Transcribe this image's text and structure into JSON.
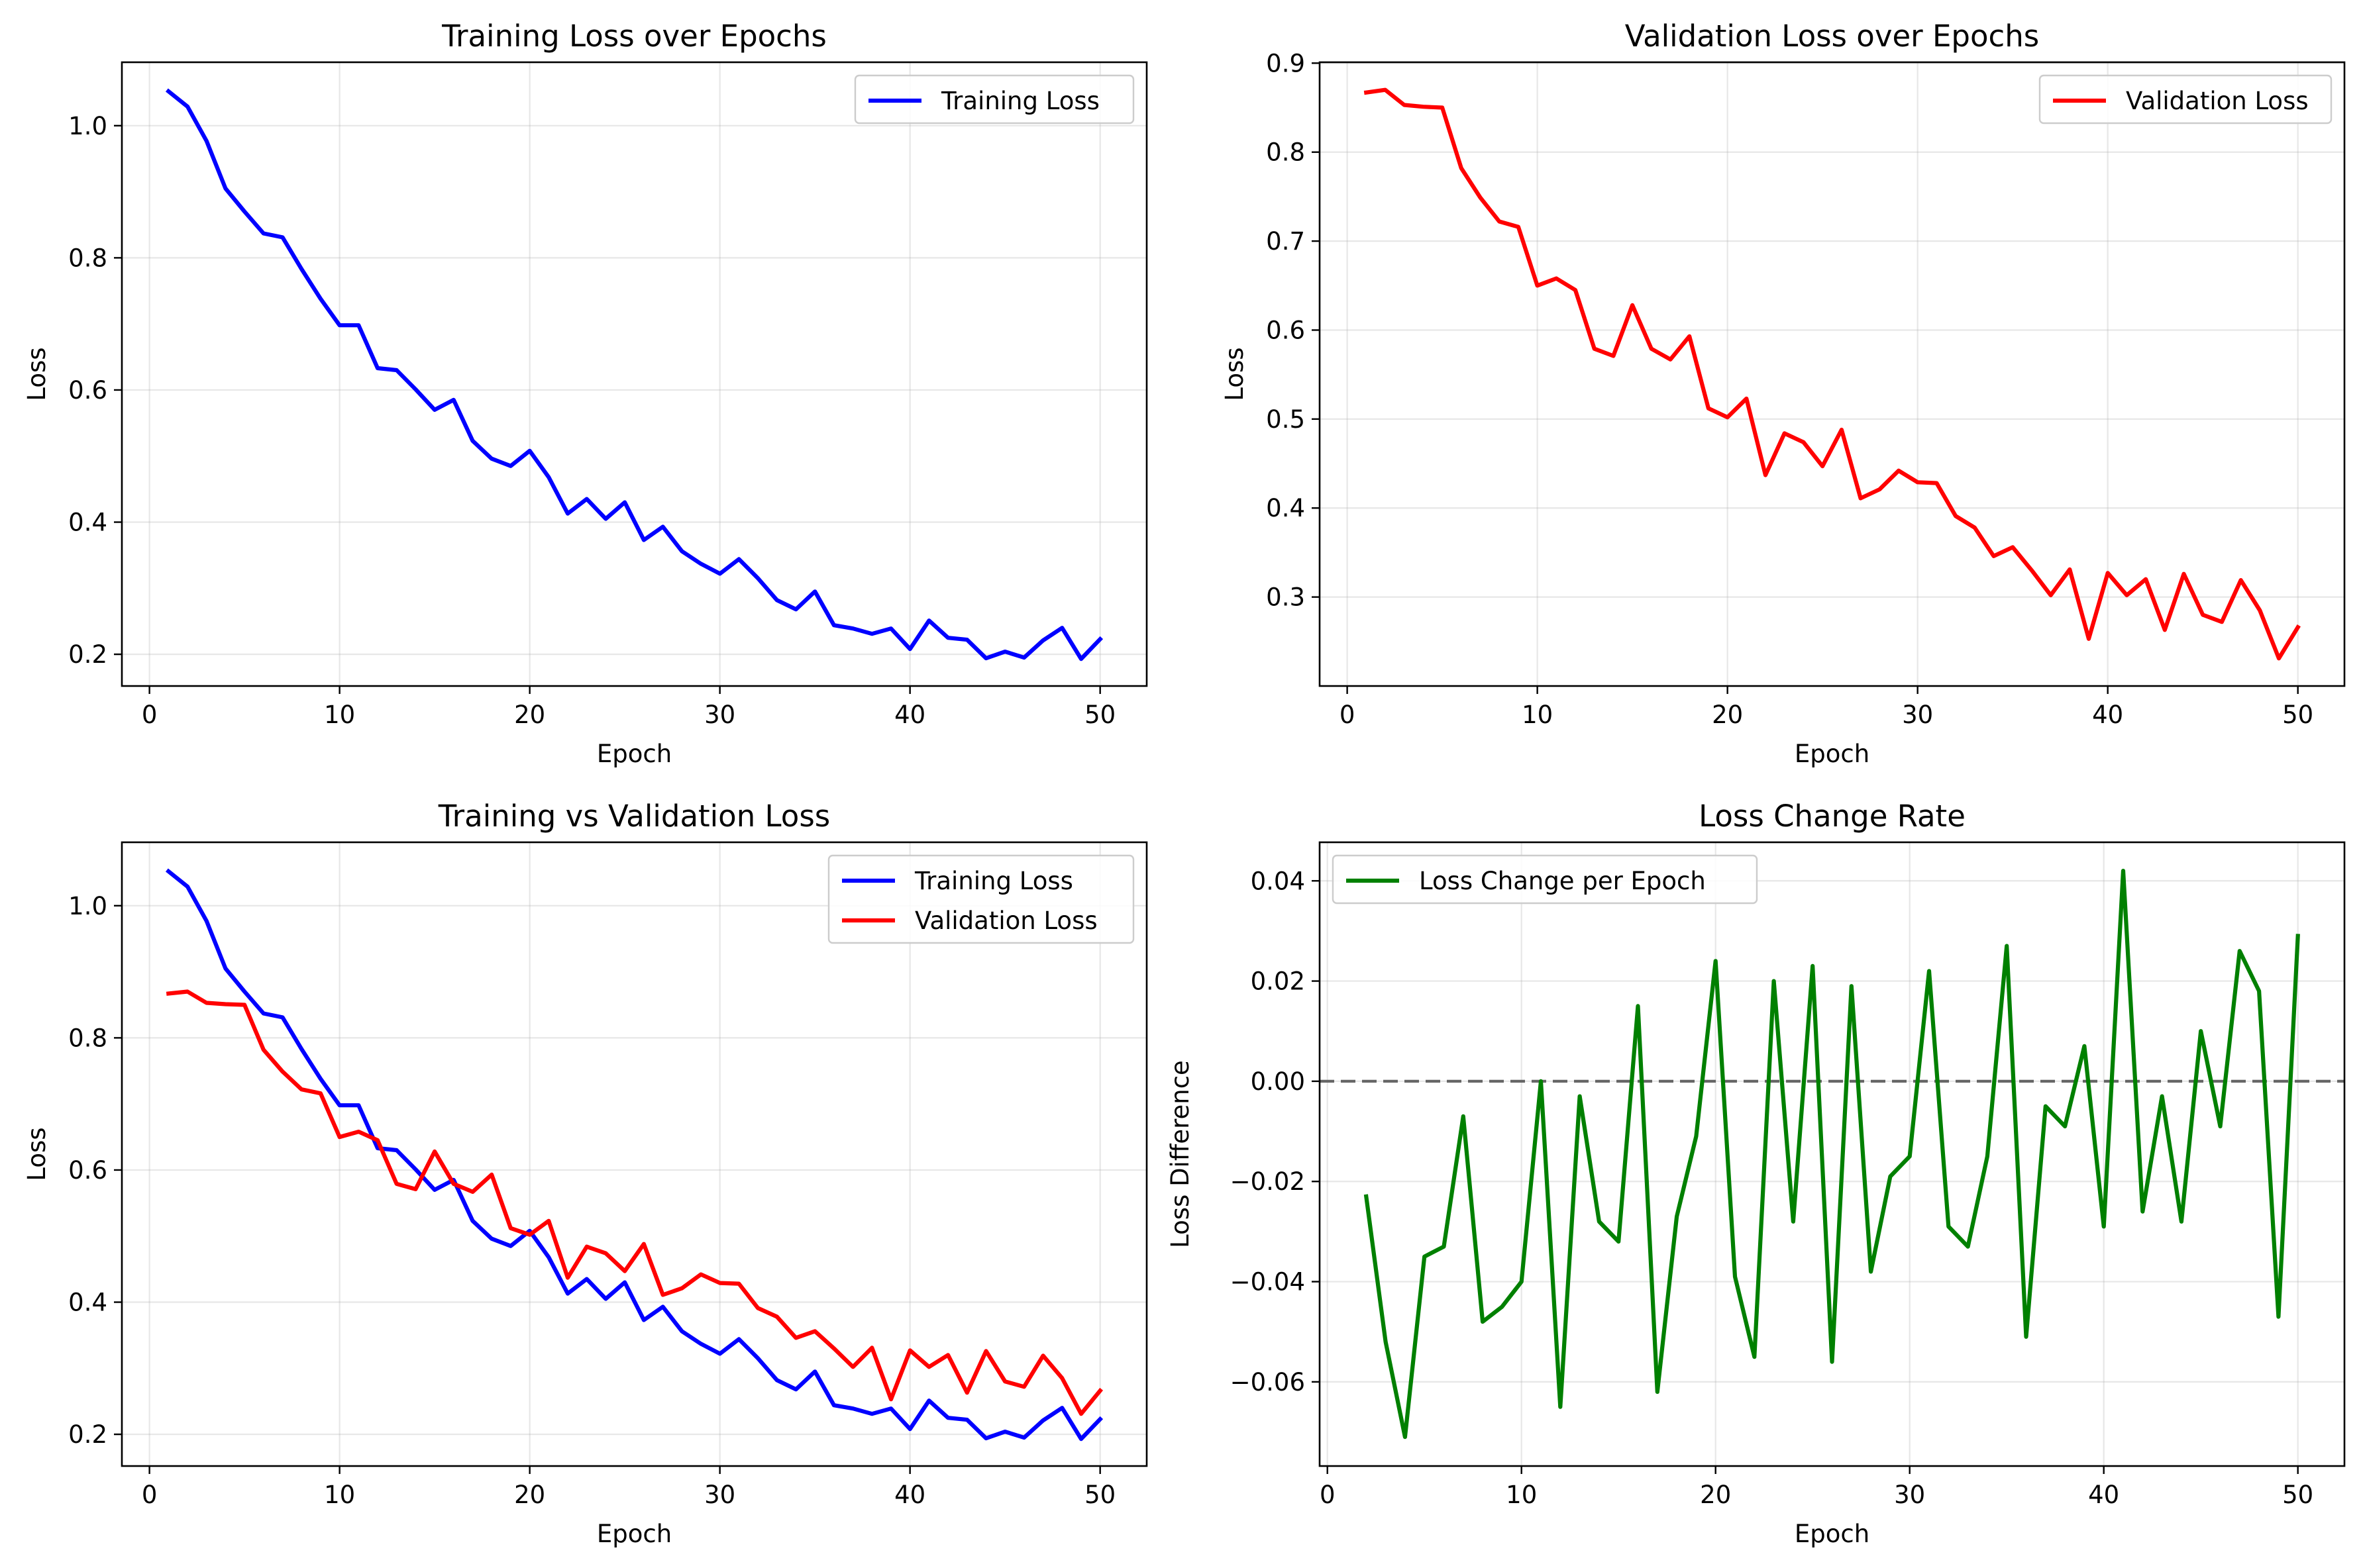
{
  "chart_data": [
    {
      "type": "line",
      "title": "Training Loss over Epochs",
      "xlabel": "Epoch",
      "ylabel": "Loss",
      "xlim": [
        -1.45,
        52.45
      ],
      "ylim": [
        0.152,
        1.096
      ],
      "xticks": [
        0,
        10,
        20,
        30,
        40,
        50
      ],
      "yticks": [
        0.2,
        0.4,
        0.6,
        0.8,
        1.0
      ],
      "xtick_labels": [
        "0",
        "10",
        "20",
        "30",
        "40",
        "50"
      ],
      "ytick_labels": [
        "0.2",
        "0.4",
        "0.6",
        "0.8",
        "1.0"
      ],
      "grid": true,
      "legend_position": "upper right",
      "x": [
        1,
        2,
        3,
        4,
        5,
        6,
        7,
        8,
        9,
        10,
        11,
        12,
        13,
        14,
        15,
        16,
        17,
        18,
        19,
        20,
        21,
        22,
        23,
        24,
        25,
        26,
        27,
        28,
        29,
        30,
        31,
        32,
        33,
        34,
        35,
        36,
        37,
        38,
        39,
        40,
        41,
        42,
        43,
        44,
        45,
        46,
        47,
        48,
        49,
        50
      ],
      "series": [
        {
          "name": "Training Loss",
          "color": "#0000ff",
          "values": [
            1.052,
            1.029,
            0.977,
            0.905,
            0.87,
            0.837,
            0.831,
            0.783,
            0.738,
            0.698,
            0.698,
            0.633,
            0.63,
            0.601,
            0.57,
            0.585,
            0.523,
            0.496,
            0.485,
            0.508,
            0.468,
            0.413,
            0.435,
            0.405,
            0.43,
            0.373,
            0.393,
            0.356,
            0.337,
            0.322,
            0.344,
            0.315,
            0.282,
            0.268,
            0.295,
            0.244,
            0.239,
            0.231,
            0.239,
            0.208,
            0.251,
            0.225,
            0.222,
            0.194,
            0.204,
            0.195,
            0.221,
            0.24,
            0.193,
            0.223
          ]
        }
      ]
    },
    {
      "type": "line",
      "title": "Validation Loss over Epochs",
      "xlabel": "Epoch",
      "ylabel": "Loss",
      "xlim": [
        -1.45,
        52.45
      ],
      "ylim": [
        0.2,
        0.901
      ],
      "xticks": [
        0,
        10,
        20,
        30,
        40,
        50
      ],
      "yticks": [
        0.3,
        0.4,
        0.5,
        0.6,
        0.7,
        0.8,
        0.9
      ],
      "xtick_labels": [
        "0",
        "10",
        "20",
        "30",
        "40",
        "50"
      ],
      "ytick_labels": [
        "0.3",
        "0.4",
        "0.5",
        "0.6",
        "0.7",
        "0.8",
        "0.9"
      ],
      "grid": true,
      "legend_position": "upper right",
      "x": [
        1,
        2,
        3,
        4,
        5,
        6,
        7,
        8,
        9,
        10,
        11,
        12,
        13,
        14,
        15,
        16,
        17,
        18,
        19,
        20,
        21,
        22,
        23,
        24,
        25,
        26,
        27,
        28,
        29,
        30,
        31,
        32,
        33,
        34,
        35,
        36,
        37,
        38,
        39,
        40,
        41,
        42,
        43,
        44,
        45,
        46,
        47,
        48,
        49,
        50
      ],
      "series": [
        {
          "name": "Validation Loss",
          "color": "#ff0000",
          "values": [
            0.867,
            0.87,
            0.853,
            0.851,
            0.85,
            0.782,
            0.749,
            0.722,
            0.716,
            0.65,
            0.658,
            0.645,
            0.579,
            0.571,
            0.628,
            0.579,
            0.567,
            0.593,
            0.512,
            0.502,
            0.523,
            0.437,
            0.484,
            0.474,
            0.447,
            0.488,
            0.411,
            0.421,
            0.442,
            0.429,
            0.428,
            0.391,
            0.378,
            0.346,
            0.356,
            0.33,
            0.302,
            0.331,
            0.253,
            0.327,
            0.302,
            0.32,
            0.263,
            0.326,
            0.28,
            0.272,
            0.319,
            0.285,
            0.231,
            0.266
          ]
        }
      ]
    },
    {
      "type": "line",
      "title": "Training vs Validation Loss",
      "xlabel": "Epoch",
      "ylabel": "Loss",
      "xlim": [
        -1.45,
        52.45
      ],
      "ylim": [
        0.152,
        1.096
      ],
      "xticks": [
        0,
        10,
        20,
        30,
        40,
        50
      ],
      "yticks": [
        0.2,
        0.4,
        0.6,
        0.8,
        1.0
      ],
      "xtick_labels": [
        "0",
        "10",
        "20",
        "30",
        "40",
        "50"
      ],
      "ytick_labels": [
        "0.2",
        "0.4",
        "0.6",
        "0.8",
        "1.0"
      ],
      "grid": true,
      "legend_position": "upper right",
      "x": [
        1,
        2,
        3,
        4,
        5,
        6,
        7,
        8,
        9,
        10,
        11,
        12,
        13,
        14,
        15,
        16,
        17,
        18,
        19,
        20,
        21,
        22,
        23,
        24,
        25,
        26,
        27,
        28,
        29,
        30,
        31,
        32,
        33,
        34,
        35,
        36,
        37,
        38,
        39,
        40,
        41,
        42,
        43,
        44,
        45,
        46,
        47,
        48,
        49,
        50
      ],
      "series": [
        {
          "name": "Training Loss",
          "color": "#0000ff",
          "values": [
            1.052,
            1.029,
            0.977,
            0.905,
            0.87,
            0.837,
            0.831,
            0.783,
            0.738,
            0.698,
            0.698,
            0.633,
            0.63,
            0.601,
            0.57,
            0.585,
            0.523,
            0.496,
            0.485,
            0.508,
            0.468,
            0.413,
            0.435,
            0.405,
            0.43,
            0.373,
            0.393,
            0.356,
            0.337,
            0.322,
            0.344,
            0.315,
            0.282,
            0.268,
            0.295,
            0.244,
            0.239,
            0.231,
            0.239,
            0.208,
            0.251,
            0.225,
            0.222,
            0.194,
            0.204,
            0.195,
            0.221,
            0.24,
            0.193,
            0.223
          ]
        },
        {
          "name": "Validation Loss",
          "color": "#ff0000",
          "values": [
            0.867,
            0.87,
            0.853,
            0.851,
            0.85,
            0.782,
            0.749,
            0.722,
            0.716,
            0.65,
            0.658,
            0.645,
            0.579,
            0.571,
            0.628,
            0.579,
            0.567,
            0.593,
            0.512,
            0.502,
            0.523,
            0.437,
            0.484,
            0.474,
            0.447,
            0.488,
            0.411,
            0.421,
            0.442,
            0.429,
            0.428,
            0.391,
            0.378,
            0.346,
            0.356,
            0.33,
            0.302,
            0.331,
            0.253,
            0.327,
            0.302,
            0.32,
            0.263,
            0.326,
            0.28,
            0.272,
            0.319,
            0.285,
            0.231,
            0.266
          ]
        }
      ]
    },
    {
      "type": "line",
      "title": "Loss Change Rate",
      "xlabel": "Epoch",
      "ylabel": "Loss Difference",
      "xlim": [
        -0.4,
        52.4
      ],
      "ylim": [
        -0.0768,
        0.0477
      ],
      "xticks": [
        0,
        10,
        20,
        30,
        40,
        50
      ],
      "yticks": [
        -0.06,
        -0.04,
        -0.02,
        0.0,
        0.02,
        0.04
      ],
      "xtick_labels": [
        "0",
        "10",
        "20",
        "30",
        "40",
        "50"
      ],
      "ytick_labels": [
        "−0.06",
        "−0.04",
        "−0.02",
        "0.00",
        "0.02",
        "0.04"
      ],
      "grid": true,
      "legend_position": "upper left",
      "reference_line": {
        "y": 0,
        "style": "dashed",
        "color": "#666666"
      },
      "x": [
        2,
        3,
        4,
        5,
        6,
        7,
        8,
        9,
        10,
        11,
        12,
        13,
        14,
        15,
        16,
        17,
        18,
        19,
        20,
        21,
        22,
        23,
        24,
        25,
        26,
        27,
        28,
        29,
        30,
        31,
        32,
        33,
        34,
        35,
        36,
        37,
        38,
        39,
        40,
        41,
        42,
        43,
        44,
        45,
        46,
        47,
        48,
        49,
        50
      ],
      "series": [
        {
          "name": "Loss Change per Epoch",
          "color": "#008000",
          "values": [
            -0.023,
            -0.052,
            -0.071,
            -0.035,
            -0.033,
            -0.007,
            -0.048,
            -0.045,
            -0.04,
            0.0,
            -0.065,
            -0.003,
            -0.028,
            -0.032,
            0.015,
            -0.062,
            -0.027,
            -0.011,
            0.024,
            -0.039,
            -0.055,
            0.02,
            -0.028,
            0.023,
            -0.056,
            0.019,
            -0.038,
            -0.019,
            -0.015,
            0.022,
            -0.029,
            -0.033,
            -0.015,
            0.027,
            -0.051,
            -0.005,
            -0.009,
            0.007,
            -0.029,
            0.042,
            -0.026,
            -0.003,
            -0.028,
            0.01,
            -0.009,
            0.026,
            0.018,
            -0.047,
            0.029
          ]
        }
      ]
    }
  ]
}
